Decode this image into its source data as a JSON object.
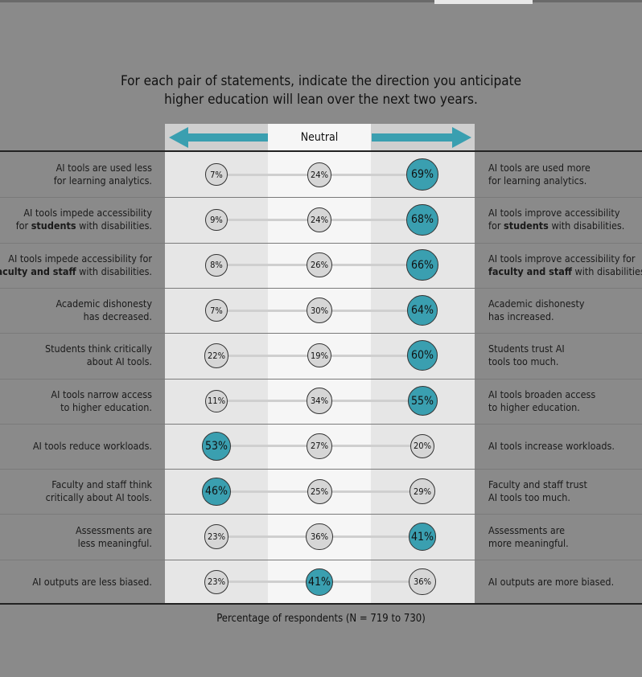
{
  "chart_data": {
    "type": "bubble-dot-plot",
    "title": "For each pair of statements, indicate the direction you anticipate\nhigher education will lean over the next two years.",
    "header": {
      "center": "Neutral"
    },
    "footer": "Percentage of respondents (N = 719 to 730)",
    "colors": {
      "highlight": "#3a9fb0",
      "neutral": "#d6d6d6",
      "background": "#8a8a8a"
    },
    "rows": [
      {
        "left": [
          {
            "t": "AI tools are used less\nfor learning analytics."
          }
        ],
        "right": [
          {
            "t": "AI tools are used more\nfor learning analytics."
          }
        ],
        "values": [
          7,
          24,
          69
        ],
        "highlight": 2
      },
      {
        "left": [
          {
            "t": "AI tools impede accessibility\nfor "
          },
          {
            "t": "students",
            "b": true
          },
          {
            "t": " with disabilities."
          }
        ],
        "right": [
          {
            "t": "AI tools improve accessibility\nfor "
          },
          {
            "t": "students",
            "b": true
          },
          {
            "t": " with disabilities."
          }
        ],
        "values": [
          9,
          24,
          68
        ],
        "highlight": 2
      },
      {
        "left": [
          {
            "t": "AI tools impede accessibility for\n"
          },
          {
            "t": "faculty and staff",
            "b": true
          },
          {
            "t": " with disabilities."
          }
        ],
        "right": [
          {
            "t": "AI tools improve accessibility for\n"
          },
          {
            "t": "faculty and staff",
            "b": true
          },
          {
            "t": " with disabilities."
          }
        ],
        "values": [
          8,
          26,
          66
        ],
        "highlight": 2
      },
      {
        "left": [
          {
            "t": "Academic dishonesty\nhas decreased."
          }
        ],
        "right": [
          {
            "t": "Academic dishonesty\nhas increased."
          }
        ],
        "values": [
          7,
          30,
          64
        ],
        "highlight": 2
      },
      {
        "left": [
          {
            "t": "Students think critically\nabout AI tools."
          }
        ],
        "right": [
          {
            "t": "Students trust AI\ntools too much."
          }
        ],
        "values": [
          22,
          19,
          60
        ],
        "highlight": 2
      },
      {
        "left": [
          {
            "t": "AI tools narrow access\nto higher education."
          }
        ],
        "right": [
          {
            "t": "AI tools broaden access\nto higher education."
          }
        ],
        "values": [
          11,
          34,
          55
        ],
        "highlight": 2
      },
      {
        "left": [
          {
            "t": "AI tools reduce workloads."
          }
        ],
        "right": [
          {
            "t": "AI tools increase workloads."
          }
        ],
        "values": [
          53,
          27,
          20
        ],
        "highlight": 0
      },
      {
        "left": [
          {
            "t": "Faculty and staff think\ncritically about AI tools."
          }
        ],
        "right": [
          {
            "t": "Faculty and staff trust\nAI tools too much."
          }
        ],
        "values": [
          46,
          25,
          29
        ],
        "highlight": 0
      },
      {
        "left": [
          {
            "t": "Assessments are\nless meaningful."
          }
        ],
        "right": [
          {
            "t": "Assessments are\nmore meaningful."
          }
        ],
        "values": [
          23,
          36,
          41
        ],
        "highlight": 2
      },
      {
        "left": [
          {
            "t": "AI outputs are less biased."
          }
        ],
        "right": [
          {
            "t": "AI outputs are more biased."
          }
        ],
        "values": [
          23,
          41,
          36
        ],
        "highlight": 1
      }
    ]
  }
}
